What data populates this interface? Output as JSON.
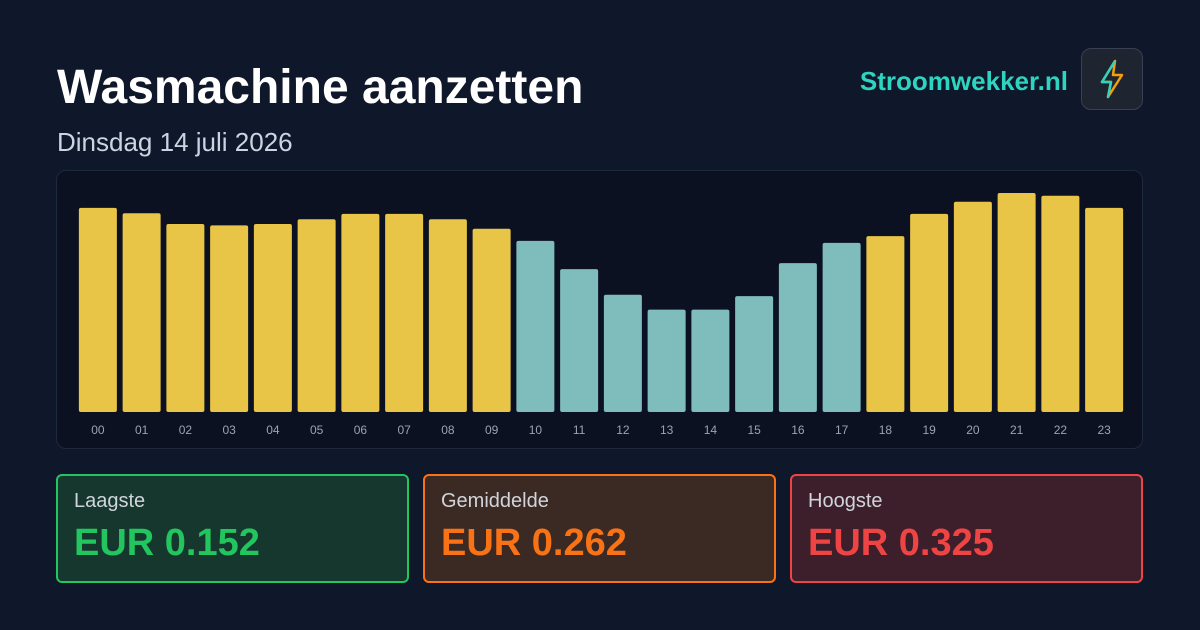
{
  "header": {
    "title": "Wasmachine aanzetten",
    "subtitle": "Dinsdag 14 juli 2026",
    "brand": "Stroomwekker.nl"
  },
  "chart_data": {
    "type": "bar",
    "categories": [
      "00",
      "01",
      "02",
      "03",
      "04",
      "05",
      "06",
      "07",
      "08",
      "09",
      "10",
      "11",
      "12",
      "13",
      "14",
      "15",
      "16",
      "17",
      "18",
      "19",
      "20",
      "21",
      "22",
      "23"
    ],
    "values": [
      0.303,
      0.295,
      0.279,
      0.277,
      0.279,
      0.286,
      0.294,
      0.294,
      0.286,
      0.272,
      0.254,
      0.212,
      0.174,
      0.152,
      0.152,
      0.172,
      0.221,
      0.251,
      0.261,
      0.294,
      0.312,
      0.325,
      0.321,
      0.303
    ],
    "colors": [
      "#e8c547",
      "#e8c547",
      "#e8c547",
      "#e8c547",
      "#e8c547",
      "#e8c547",
      "#e8c547",
      "#e8c547",
      "#e8c547",
      "#e8c547",
      "#7fbcbc",
      "#7fbcbc",
      "#7fbcbc",
      "#7fbcbc",
      "#7fbcbc",
      "#7fbcbc",
      "#7fbcbc",
      "#7fbcbc",
      "#e8c547",
      "#e8c547",
      "#e8c547",
      "#e8c547",
      "#e8c547",
      "#e8c547"
    ]
  },
  "stats": [
    {
      "label": "Laagste",
      "value": "EUR 0.152"
    },
    {
      "label": "Gemiddelde",
      "value": "EUR 0.262"
    },
    {
      "label": "Hoogste",
      "value": "EUR 0.325"
    }
  ]
}
